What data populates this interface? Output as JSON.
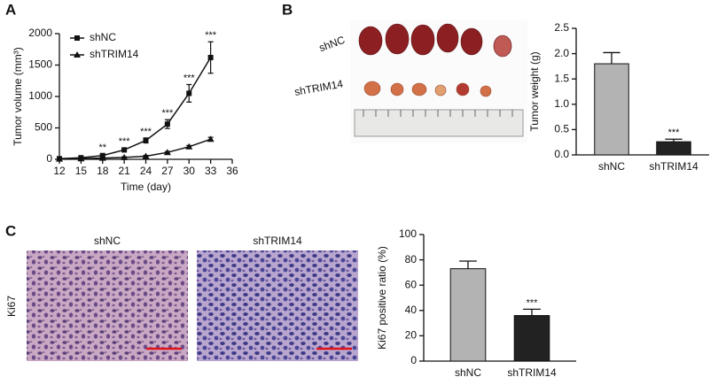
{
  "panel_labels": [
    "A",
    "B",
    "C"
  ],
  "photo_labels": [
    "shNC",
    "shTRIM14"
  ],
  "histology": {
    "labels": [
      "shNC",
      "shTRIM14"
    ],
    "stain": "Ki67"
  },
  "chart_data": [
    {
      "type": "line",
      "xlabel": "Time (day)",
      "ylabel": "Tumor volume (mm³)",
      "x": [
        12,
        15,
        18,
        21,
        24,
        27,
        30,
        33
      ],
      "xlim": [
        12,
        36
      ],
      "xticks": [
        12,
        15,
        18,
        21,
        24,
        27,
        30,
        33,
        36
      ],
      "ylim": [
        0,
        2000
      ],
      "yticks": [
        0,
        500,
        1000,
        1500,
        2000
      ],
      "series": [
        {
          "name": "shNC",
          "color": "#111111",
          "marker": "square",
          "values": [
            10,
            25,
            60,
            150,
            300,
            560,
            1050,
            1620
          ],
          "errors": [
            8,
            10,
            20,
            30,
            40,
            70,
            140,
            250
          ]
        },
        {
          "name": "shTRIM14",
          "color": "#111111",
          "marker": "triangle",
          "values": [
            5,
            10,
            20,
            30,
            50,
            110,
            200,
            320
          ],
          "errors": [
            4,
            5,
            8,
            10,
            12,
            15,
            20,
            30
          ]
        }
      ],
      "significance": [
        null,
        null,
        "**",
        "***",
        "***",
        "***",
        "***",
        "***"
      ],
      "legend": "upper left"
    },
    {
      "type": "bar",
      "ylabel": "Tumor weight (g)",
      "categories": [
        "shNC",
        "shTRIM14"
      ],
      "values": [
        1.8,
        0.26
      ],
      "errors": [
        0.22,
        0.05
      ],
      "colors": [
        "#b3b3b3",
        "#222222"
      ],
      "significance": [
        null,
        "***"
      ],
      "ylim": [
        0,
        2.5
      ],
      "yticks": [
        {
          "value": 0,
          "label": "0.0"
        },
        0.5,
        {
          "value": 1,
          "label": "1.0"
        },
        1.5,
        {
          "value": 2,
          "label": "2.0"
        },
        2.5
      ]
    },
    {
      "type": "bar",
      "ylabel": "Ki67 positive ratio (%)",
      "categories": [
        "shNC",
        "shTRIM14"
      ],
      "values": [
        73,
        36
      ],
      "errors": [
        6,
        5
      ],
      "colors": [
        "#b3b3b3",
        "#222222"
      ],
      "significance": [
        null,
        "***"
      ],
      "ylim": [
        0,
        100
      ],
      "yticks": [
        0,
        20,
        40,
        60,
        80,
        100
      ]
    }
  ]
}
